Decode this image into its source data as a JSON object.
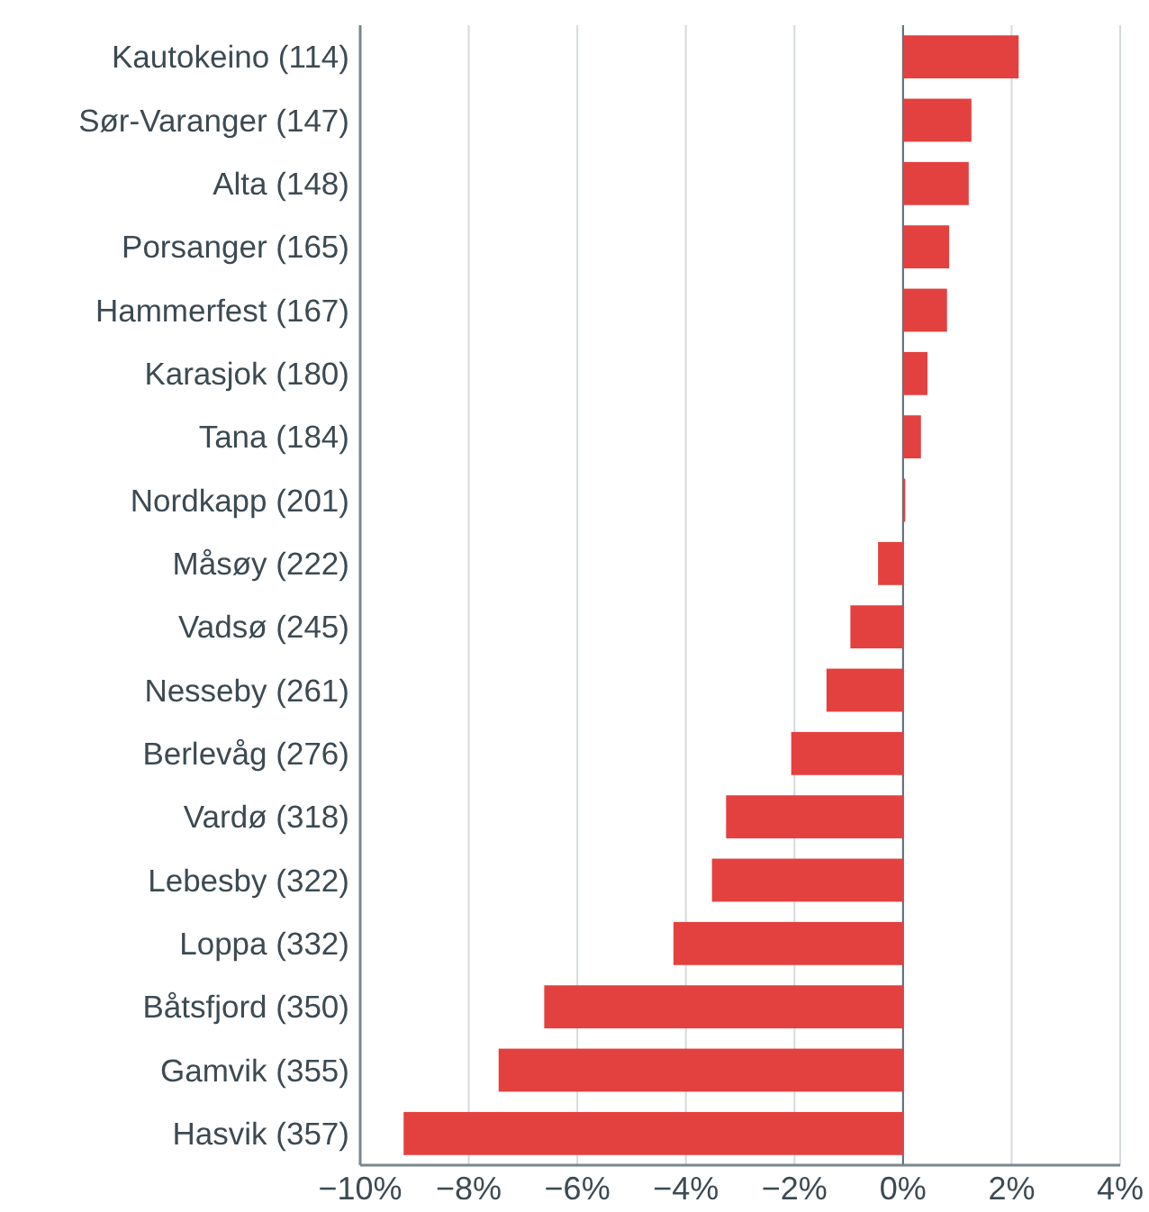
{
  "chart_data": {
    "type": "bar",
    "orientation": "horizontal",
    "categories": [
      "Kautokeino (114)",
      "Sør-Varanger (147)",
      "Alta (148)",
      "Porsanger (165)",
      "Hammerfest (167)",
      "Karasjok (180)",
      "Tana (184)",
      "Nordkapp (201)",
      "Måsøy (222)",
      "Vadsø (245)",
      "Nesseby (261)",
      "Berlevåg (276)",
      "Vardø (318)",
      "Lebesby (322)",
      "Loppa (332)",
      "Båtsfjord (350)",
      "Gamvik (355)",
      "Hasvik (357)"
    ],
    "values": [
      2.13,
      1.26,
      1.21,
      0.85,
      0.81,
      0.45,
      0.33,
      0.04,
      -0.46,
      -0.97,
      -1.41,
      -2.06,
      -3.26,
      -3.52,
      -4.23,
      -6.61,
      -7.45,
      -9.2
    ],
    "color": "#e34140",
    "xlim": [
      -10,
      4
    ],
    "xticks": [
      {
        "value": -10,
        "label": "−10%"
      },
      {
        "value": -8,
        "label": "−8%"
      },
      {
        "value": -6,
        "label": "−6%"
      },
      {
        "value": -4,
        "label": "−4%"
      },
      {
        "value": -2,
        "label": "−2%"
      },
      {
        "value": 0,
        "label": "0%"
      },
      {
        "value": 2,
        "label": "2%"
      },
      {
        "value": 4,
        "label": "4%"
      }
    ],
    "grid": "x"
  }
}
